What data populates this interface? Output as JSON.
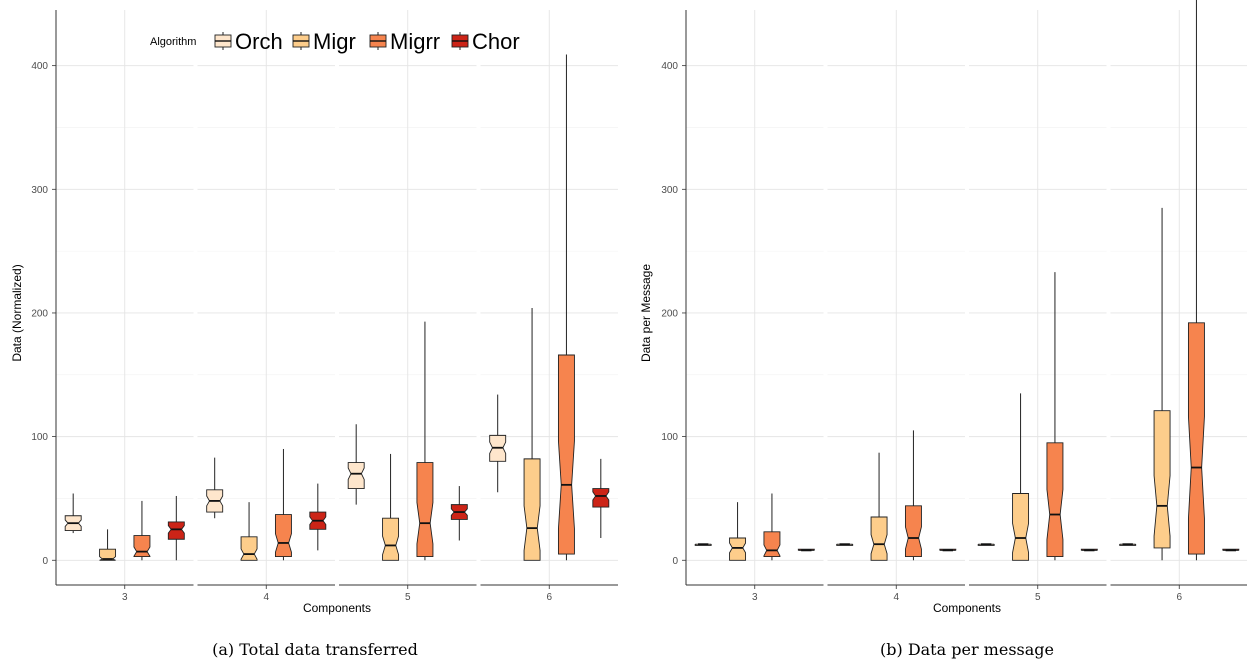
{
  "legend": {
    "title": "Algorithm",
    "items": [
      {
        "label": "Orch",
        "color": "#fee6cc"
      },
      {
        "label": "Migr",
        "color": "#fdcd8b"
      },
      {
        "label": "Migrr",
        "color": "#f6844e"
      },
      {
        "label": "Chor",
        "color": "#cc2417"
      }
    ]
  },
  "chart_data": [
    {
      "type": "box",
      "caption": "(a) Total data transferred",
      "xlabel": "Components",
      "ylabel": "Data  (Normalized)",
      "ylim": [
        -20,
        445
      ],
      "yticks": [
        0,
        100,
        200,
        300,
        400
      ],
      "grid": true,
      "legend_position": "top",
      "facets": [
        "3",
        "4",
        "5",
        "6"
      ],
      "series": [
        {
          "name": "Orch",
          "boxes": [
            {
              "min": 22,
              "q1": 24,
              "median": 30,
              "q3": 36,
              "max": 54
            },
            {
              "min": 34,
              "q1": 39,
              "median": 48,
              "q3": 57,
              "max": 83
            },
            {
              "min": 45,
              "q1": 58,
              "median": 70,
              "q3": 79,
              "max": 110
            },
            {
              "min": 55,
              "q1": 80,
              "median": 91,
              "q3": 101,
              "max": 134
            }
          ]
        },
        {
          "name": "Migr",
          "boxes": [
            {
              "min": 0,
              "q1": 0,
              "median": 1,
              "q3": 9,
              "max": 25
            },
            {
              "min": 0,
              "q1": 0,
              "median": 5,
              "q3": 19,
              "max": 47
            },
            {
              "min": 0,
              "q1": 0,
              "median": 12,
              "q3": 34,
              "max": 86
            },
            {
              "min": 0,
              "q1": 0,
              "median": 26,
              "q3": 82,
              "max": 204
            }
          ]
        },
        {
          "name": "Migrr",
          "boxes": [
            {
              "min": 0,
              "q1": 3,
              "median": 7,
              "q3": 20,
              "max": 48
            },
            {
              "min": 0,
              "q1": 3,
              "median": 14,
              "q3": 37,
              "max": 90
            },
            {
              "min": 0,
              "q1": 3,
              "median": 30,
              "q3": 79,
              "max": 193
            },
            {
              "min": 0,
              "q1": 5,
              "median": 61,
              "q3": 166,
              "max": 409
            }
          ]
        },
        {
          "name": "Chor",
          "boxes": [
            {
              "min": 0,
              "q1": 17,
              "median": 25,
              "q3": 31,
              "max": 52
            },
            {
              "min": 8,
              "q1": 25,
              "median": 32,
              "q3": 39,
              "max": 62
            },
            {
              "min": 16,
              "q1": 33,
              "median": 39,
              "q3": 45,
              "max": 60
            },
            {
              "min": 18,
              "q1": 43,
              "median": 52,
              "q3": 58,
              "max": 82
            }
          ]
        }
      ]
    },
    {
      "type": "box",
      "caption": "(b) Data per message",
      "xlabel": "Components",
      "ylabel": "Data per Message",
      "ylim": [
        -20,
        445
      ],
      "yticks": [
        0,
        100,
        200,
        300,
        400
      ],
      "grid": true,
      "facets": [
        "3",
        "4",
        "5",
        "6"
      ],
      "series": [
        {
          "name": "Orch",
          "boxes": [
            {
              "min": 12,
              "q1": 12,
              "median": 13,
              "q3": 13,
              "max": 13
            },
            {
              "min": 12,
              "q1": 12,
              "median": 13,
              "q3": 13,
              "max": 13
            },
            {
              "min": 12,
              "q1": 12,
              "median": 13,
              "q3": 13,
              "max": 13
            },
            {
              "min": 12,
              "q1": 12,
              "median": 13,
              "q3": 13,
              "max": 13
            }
          ]
        },
        {
          "name": "Migr",
          "boxes": [
            {
              "min": 0,
              "q1": 0,
              "median": 10,
              "q3": 18,
              "max": 47
            },
            {
              "min": 0,
              "q1": 0,
              "median": 13,
              "q3": 35,
              "max": 87
            },
            {
              "min": 0,
              "q1": 0,
              "median": 18,
              "q3": 54,
              "max": 135
            },
            {
              "min": 0,
              "q1": 10,
              "median": 44,
              "q3": 121,
              "max": 285
            }
          ]
        },
        {
          "name": "Migrr",
          "boxes": [
            {
              "min": 0,
              "q1": 3,
              "median": 8,
              "q3": 23,
              "max": 54
            },
            {
              "min": 0,
              "q1": 3,
              "median": 18,
              "q3": 44,
              "max": 105
            },
            {
              "min": 0,
              "q1": 3,
              "median": 37,
              "q3": 95,
              "max": 233
            },
            {
              "min": 0,
              "q1": 5,
              "median": 75,
              "q3": 192,
              "max": 460
            }
          ]
        },
        {
          "name": "Chor",
          "boxes": [
            {
              "min": 8,
              "q1": 8,
              "median": 8,
              "q3": 9,
              "max": 9
            },
            {
              "min": 8,
              "q1": 8,
              "median": 8,
              "q3": 9,
              "max": 9
            },
            {
              "min": 8,
              "q1": 8,
              "median": 8,
              "q3": 9,
              "max": 9
            },
            {
              "min": 8,
              "q1": 8,
              "median": 8,
              "q3": 9,
              "max": 9
            }
          ]
        }
      ]
    }
  ]
}
